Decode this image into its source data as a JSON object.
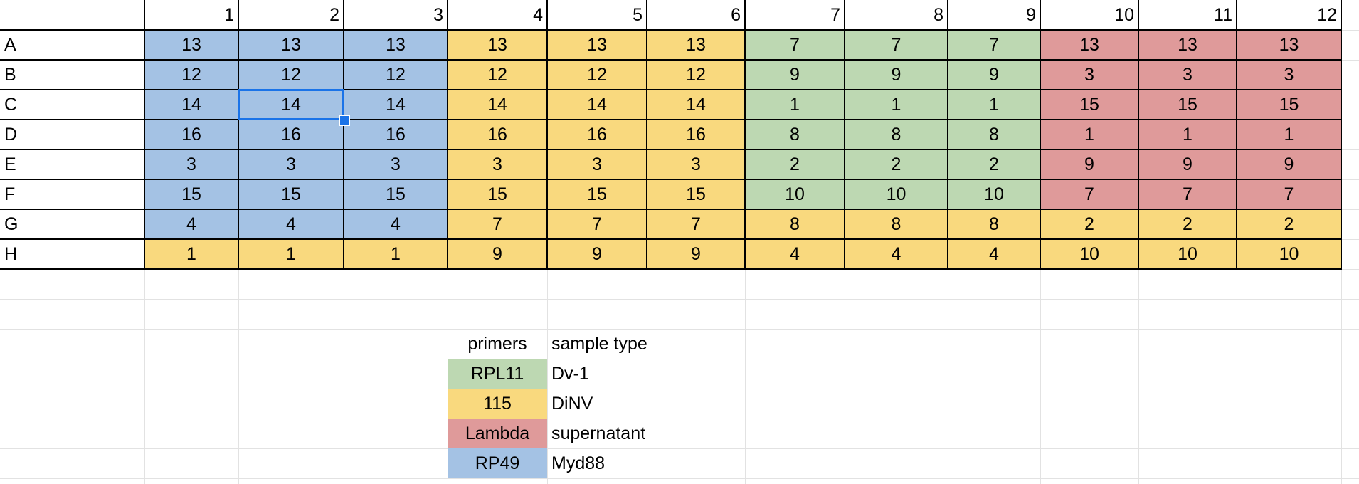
{
  "colors": {
    "blue": "#a4c2e4",
    "yellow": "#f9d97e",
    "green": "#bdd8b2",
    "red": "#df9a9a",
    "selection": "#1a73e8",
    "gridline": "#e2e2e2",
    "border": "#000000"
  },
  "plate": {
    "columns": [
      "1",
      "2",
      "3",
      "4",
      "5",
      "6",
      "7",
      "8",
      "9",
      "10",
      "11",
      "12"
    ],
    "rows": [
      {
        "label": "A",
        "values": [
          "13",
          "13",
          "13",
          "13",
          "13",
          "13",
          "7",
          "7",
          "7",
          "13",
          "13",
          "13"
        ],
        "colors": [
          "blue",
          "blue",
          "blue",
          "yellow",
          "yellow",
          "yellow",
          "green",
          "green",
          "green",
          "red",
          "red",
          "red"
        ]
      },
      {
        "label": "B",
        "values": [
          "12",
          "12",
          "12",
          "12",
          "12",
          "12",
          "9",
          "9",
          "9",
          "3",
          "3",
          "3"
        ],
        "colors": [
          "blue",
          "blue",
          "blue",
          "yellow",
          "yellow",
          "yellow",
          "green",
          "green",
          "green",
          "red",
          "red",
          "red"
        ]
      },
      {
        "label": "C",
        "values": [
          "14",
          "14",
          "14",
          "14",
          "14",
          "14",
          "1",
          "1",
          "1",
          "15",
          "15",
          "15"
        ],
        "colors": [
          "blue",
          "blue",
          "blue",
          "yellow",
          "yellow",
          "yellow",
          "green",
          "green",
          "green",
          "red",
          "red",
          "red"
        ]
      },
      {
        "label": "D",
        "values": [
          "16",
          "16",
          "16",
          "16",
          "16",
          "16",
          "8",
          "8",
          "8",
          "1",
          "1",
          "1"
        ],
        "colors": [
          "blue",
          "blue",
          "blue",
          "yellow",
          "yellow",
          "yellow",
          "green",
          "green",
          "green",
          "red",
          "red",
          "red"
        ]
      },
      {
        "label": "E",
        "values": [
          "3",
          "3",
          "3",
          "3",
          "3",
          "3",
          "2",
          "2",
          "2",
          "9",
          "9",
          "9"
        ],
        "colors": [
          "blue",
          "blue",
          "blue",
          "yellow",
          "yellow",
          "yellow",
          "green",
          "green",
          "green",
          "red",
          "red",
          "red"
        ]
      },
      {
        "label": "F",
        "values": [
          "15",
          "15",
          "15",
          "15",
          "15",
          "15",
          "10",
          "10",
          "10",
          "7",
          "7",
          "7"
        ],
        "colors": [
          "blue",
          "blue",
          "blue",
          "yellow",
          "yellow",
          "yellow",
          "green",
          "green",
          "green",
          "red",
          "red",
          "red"
        ]
      },
      {
        "label": "G",
        "values": [
          "4",
          "4",
          "4",
          "7",
          "7",
          "7",
          "8",
          "8",
          "8",
          "2",
          "2",
          "2"
        ],
        "colors": [
          "blue",
          "blue",
          "blue",
          "yellow",
          "yellow",
          "yellow",
          "yellow",
          "yellow",
          "yellow",
          "yellow",
          "yellow",
          "yellow"
        ]
      },
      {
        "label": "H",
        "values": [
          "1",
          "1",
          "1",
          "9",
          "9",
          "9",
          "4",
          "4",
          "4",
          "10",
          "10",
          "10"
        ],
        "colors": [
          "yellow",
          "yellow",
          "yellow",
          "yellow",
          "yellow",
          "yellow",
          "yellow",
          "yellow",
          "yellow",
          "yellow",
          "yellow",
          "yellow"
        ]
      }
    ],
    "selected_cell": {
      "row": "C",
      "column": "2"
    }
  },
  "legend": {
    "header_primers": "primers",
    "header_sample_type": "sample type",
    "primers": [
      {
        "label": "RPL11",
        "color": "green"
      },
      {
        "label": "115",
        "color": "yellow"
      },
      {
        "label": "Lambda",
        "color": "red"
      },
      {
        "label": "RP49",
        "color": "blue"
      }
    ],
    "sample_types": [
      "Dv-1",
      "DiNV",
      "supernatant",
      "Myd88"
    ]
  }
}
